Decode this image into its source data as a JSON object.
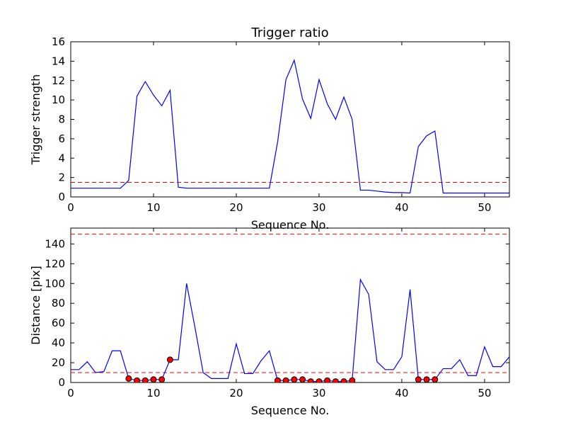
{
  "chart_data": [
    {
      "type": "line",
      "title": "Trigger ratio",
      "xlabel": "Sequence No.",
      "ylabel": "Trigger strength",
      "xlim": [
        0,
        53
      ],
      "ylim": [
        0,
        16
      ],
      "xticks": [
        "0",
        "10",
        "20",
        "30",
        "40",
        "50"
      ],
      "yticks": [
        "0",
        "2",
        "4",
        "6",
        "8",
        "10",
        "12",
        "14",
        "16"
      ],
      "grid": false,
      "series": [
        {
          "color": "#0000ff",
          "x": [
            0,
            1,
            2,
            3,
            4,
            5,
            6,
            7,
            8,
            9,
            10,
            11,
            12,
            13,
            14,
            15,
            16,
            17,
            18,
            19,
            20,
            21,
            22,
            23,
            24,
            25,
            26,
            27,
            28,
            29,
            30,
            31,
            32,
            33,
            34,
            35,
            36,
            37,
            38,
            39,
            40,
            41,
            42,
            43,
            44,
            45,
            46,
            47,
            48,
            49,
            50,
            51,
            52,
            53
          ],
          "y": [
            0.9,
            0.9,
            0.9,
            0.9,
            0.9,
            0.9,
            0.9,
            1.7,
            10.4,
            11.9,
            10.5,
            9.4,
            11.0,
            1.0,
            0.9,
            0.9,
            0.9,
            0.9,
            0.9,
            0.9,
            0.9,
            0.9,
            0.9,
            0.9,
            0.9,
            5.7,
            12.1,
            14.1,
            10.1,
            8.1,
            12.1,
            9.6,
            8.0,
            10.3,
            8.0,
            0.7,
            0.7,
            0.6,
            0.5,
            0.45,
            0.45,
            0.4,
            5.2,
            6.3,
            6.8,
            0.4,
            0.4,
            0.4,
            0.4,
            0.4,
            0.4,
            0.4,
            0.4,
            0.4
          ]
        }
      ],
      "hlines": [
        {
          "y": 1.5,
          "color": "#ff0000",
          "style": "dashed"
        }
      ]
    },
    {
      "type": "line",
      "title": "",
      "xlabel": "Sequence No.",
      "ylabel": "Distance [pix]",
      "xlim": [
        0,
        53
      ],
      "ylim": [
        0,
        156
      ],
      "xticks": [
        "0",
        "10",
        "20",
        "30",
        "40",
        "50"
      ],
      "yticks": [
        "0",
        "20",
        "40",
        "60",
        "80",
        "100",
        "120",
        "140"
      ],
      "grid": false,
      "series": [
        {
          "color": "#0000ff",
          "x": [
            0,
            1,
            2,
            3,
            4,
            5,
            6,
            7,
            8,
            9,
            10,
            11,
            12,
            13,
            14,
            15,
            16,
            17,
            18,
            19,
            20,
            21,
            22,
            23,
            24,
            25,
            26,
            27,
            28,
            29,
            30,
            31,
            32,
            33,
            34,
            35,
            36,
            37,
            38,
            39,
            40,
            41,
            42,
            43,
            44,
            45,
            46,
            47,
            48,
            49,
            50,
            51,
            52,
            53
          ],
          "y": [
            13,
            13,
            21,
            10,
            11,
            32,
            32,
            4,
            2,
            2,
            3,
            3,
            23,
            23,
            100,
            56,
            10,
            4,
            4,
            4,
            39,
            9,
            9,
            22,
            32,
            2,
            2,
            3,
            3,
            1,
            1,
            2,
            1,
            1,
            2,
            104,
            89,
            21,
            13,
            13,
            26,
            94,
            3,
            3,
            3,
            14,
            14,
            23,
            7,
            7,
            36,
            16,
            16,
            26
          ]
        }
      ],
      "markers": {
        "color": "#ff0000",
        "x": [
          7,
          8,
          9,
          10,
          11,
          12,
          25,
          26,
          27,
          28,
          29,
          30,
          31,
          32,
          33,
          34,
          42,
          43,
          44
        ],
        "y": [
          4,
          2,
          2,
          3,
          3,
          23,
          2,
          2,
          3,
          3,
          1,
          1,
          2,
          1,
          1,
          2,
          3,
          3,
          3
        ]
      },
      "hlines": [
        {
          "y": 150,
          "color": "#ff0000",
          "style": "dashed"
        },
        {
          "y": 10,
          "color": "#ff0000",
          "style": "dashed"
        }
      ]
    }
  ]
}
